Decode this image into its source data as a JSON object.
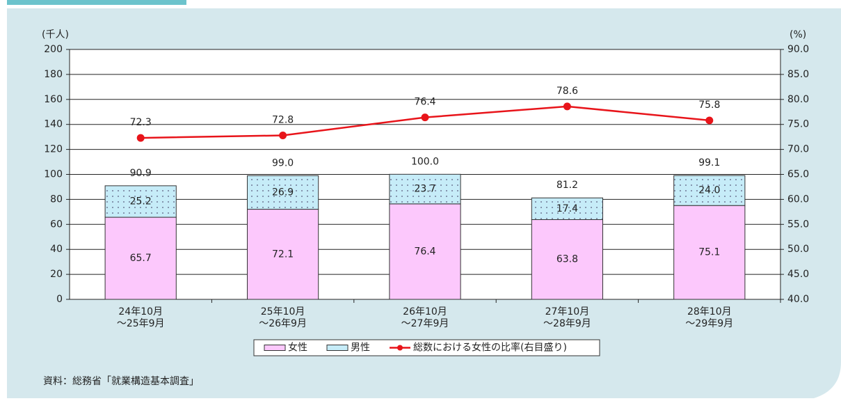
{
  "chart_data": {
    "type": "bar",
    "y_unit": "(千人)",
    "y2_unit": "(%)",
    "categories": [
      [
        "24年10月",
        "～25年9月"
      ],
      [
        "25年10月",
        "～26年9月"
      ],
      [
        "26年10月",
        "～27年9月"
      ],
      [
        "27年10月",
        "～28年9月"
      ],
      [
        "28年10月",
        "～29年9月"
      ]
    ],
    "series": [
      {
        "name": "女性",
        "color": "#fcc8fc",
        "values": [
          65.7,
          72.1,
          76.4,
          63.8,
          75.1
        ]
      },
      {
        "name": "男性",
        "color": "#c6ecf8",
        "values": [
          25.2,
          26.9,
          23.7,
          17.4,
          24.0
        ],
        "value_labels": [
          "25.2",
          "26.9",
          "23.7",
          "17.4",
          "24.0"
        ]
      },
      {
        "name": "総数における女性の比率(右目盛り)",
        "type": "line",
        "axis": "y2",
        "color": "#e8141a",
        "values": [
          72.3,
          72.8,
          76.4,
          78.6,
          75.8
        ]
      }
    ],
    "totals": [
      90.9,
      99.0,
      100.0,
      81.2,
      99.1
    ],
    "totals_labels": [
      "90.9",
      "99.0",
      "100.0",
      "81.2",
      "99.1"
    ],
    "ylim": [
      0,
      200
    ],
    "yticks": [
      0,
      20,
      40,
      60,
      80,
      100,
      120,
      140,
      160,
      180,
      200
    ],
    "y2lim": [
      40,
      90
    ],
    "y2ticks": [
      {
        "value": 40,
        "label": "40.0"
      },
      {
        "value": 45,
        "label": "45.0"
      },
      {
        "value": 50,
        "label": "50.0"
      },
      {
        "value": 55,
        "label": "55.0"
      },
      {
        "value": 60,
        "label": "60.0"
      },
      {
        "value": 65,
        "label": "65.0"
      },
      {
        "value": 70,
        "label": "70.0"
      },
      {
        "value": 75,
        "label": "75.0"
      },
      {
        "value": 80,
        "label": "80.0"
      },
      {
        "value": 85,
        "label": "85.0"
      },
      {
        "value": 90,
        "label": "90.0"
      }
    ],
    "grid": true,
    "legend": "bottom",
    "source": "資料：総務省「就業構造基本調査」"
  }
}
